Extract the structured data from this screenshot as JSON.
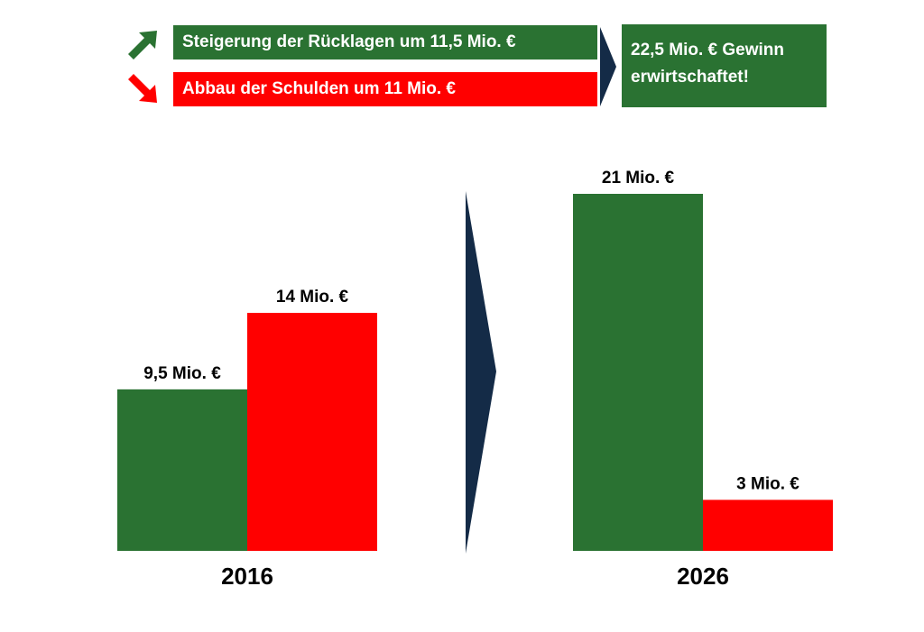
{
  "colors": {
    "green": "#2a7232",
    "red": "#ff0000",
    "navy": "#142b47"
  },
  "banners": {
    "increase": {
      "text": "Steigerung der Rücklagen um 11,5 Mio. €",
      "icon": "arrow-up-right-icon"
    },
    "decrease": {
      "text": "Abbau der Schulden um 11 Mio. €",
      "icon": "arrow-down-right-icon"
    }
  },
  "result": {
    "line1": "22,5 Mio. € Gewinn",
    "line2": "erwirtschaftet!"
  },
  "chart_data": {
    "type": "bar",
    "categories": [
      "2016",
      "2026"
    ],
    "series": [
      {
        "values": [
          9.5,
          21
        ],
        "value_labels": [
          "9,5 Mio. €",
          "21 Mio. €"
        ]
      },
      {
        "values": [
          14,
          3
        ],
        "value_labels": [
          "14 Mio. €",
          "3 Mio. €"
        ]
      }
    ],
    "ylim": [
      0,
      21
    ],
    "grid": false
  }
}
